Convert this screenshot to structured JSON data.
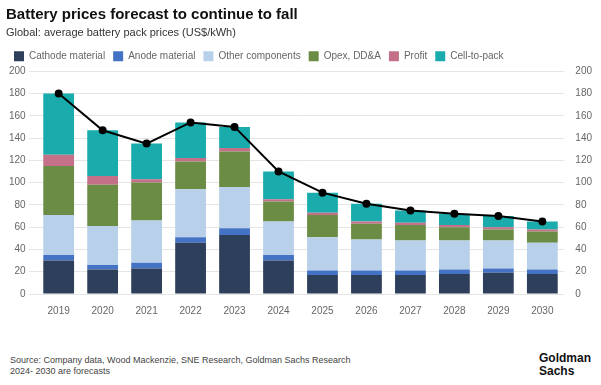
{
  "chart_data": {
    "type": "bar",
    "stacked": true,
    "title": "Battery prices forecast to continue to fall",
    "subtitle": "Global: average battery pack prices (US$/kWh)",
    "source": "Source: Company data, Wood Mackenzie, SNE Research, Goldman Sachs Research\n2024- 2030 are forecasts",
    "annotations": [
      "Goldman\nSachs"
    ],
    "categories": [
      "2019",
      "2020",
      "2021",
      "2022",
      "2023",
      "2024",
      "2025",
      "2026",
      "2027",
      "2028",
      "2029",
      "2030"
    ],
    "series": [
      {
        "name": "Cathode material",
        "color": "#2e3f5c",
        "values": [
          30,
          22,
          23,
          46,
          53,
          30,
          17,
          17,
          17,
          18,
          19,
          18
        ]
      },
      {
        "name": "Anode material",
        "color": "#4472c4",
        "values": [
          5,
          4,
          5,
          5,
          6,
          5,
          4,
          4,
          4,
          4,
          4,
          4
        ]
      },
      {
        "name": "Other components",
        "color": "#b8d0ea",
        "values": [
          36,
          35,
          38,
          43,
          37,
          30,
          30,
          28,
          27,
          26,
          25,
          24
        ]
      },
      {
        "name": "Opex, DD&A",
        "color": "#6b8c44",
        "values": [
          44,
          37,
          34,
          25,
          32,
          18,
          20,
          14,
          14,
          12,
          10,
          10
        ]
      },
      {
        "name": "Profit",
        "color": "#c47088",
        "values": [
          10,
          8,
          3,
          3,
          3,
          2,
          2,
          2,
          2,
          2,
          2,
          2
        ]
      },
      {
        "name": "Cell-to-pack",
        "color": "#1aacac",
        "values": [
          55,
          41,
          32,
          32,
          19,
          25,
          18,
          16,
          11,
          10,
          10,
          7
        ]
      },
      {
        "type": "line",
        "color": "#000000",
        "marker": "circle",
        "axis": "y2",
        "values": [
          180,
          147,
          135,
          154,
          150,
          110,
          91,
          81,
          75,
          72,
          70,
          65
        ]
      }
    ],
    "ylim": [
      0,
      200
    ],
    "yticks": [
      0,
      20,
      40,
      60,
      80,
      100,
      120,
      140,
      160,
      180,
      200
    ],
    "y2lim": [
      0,
      200
    ],
    "y2ticks": [
      0,
      20,
      40,
      60,
      80,
      100,
      120,
      140,
      160,
      180,
      200
    ],
    "grid": true,
    "legend": "top"
  }
}
